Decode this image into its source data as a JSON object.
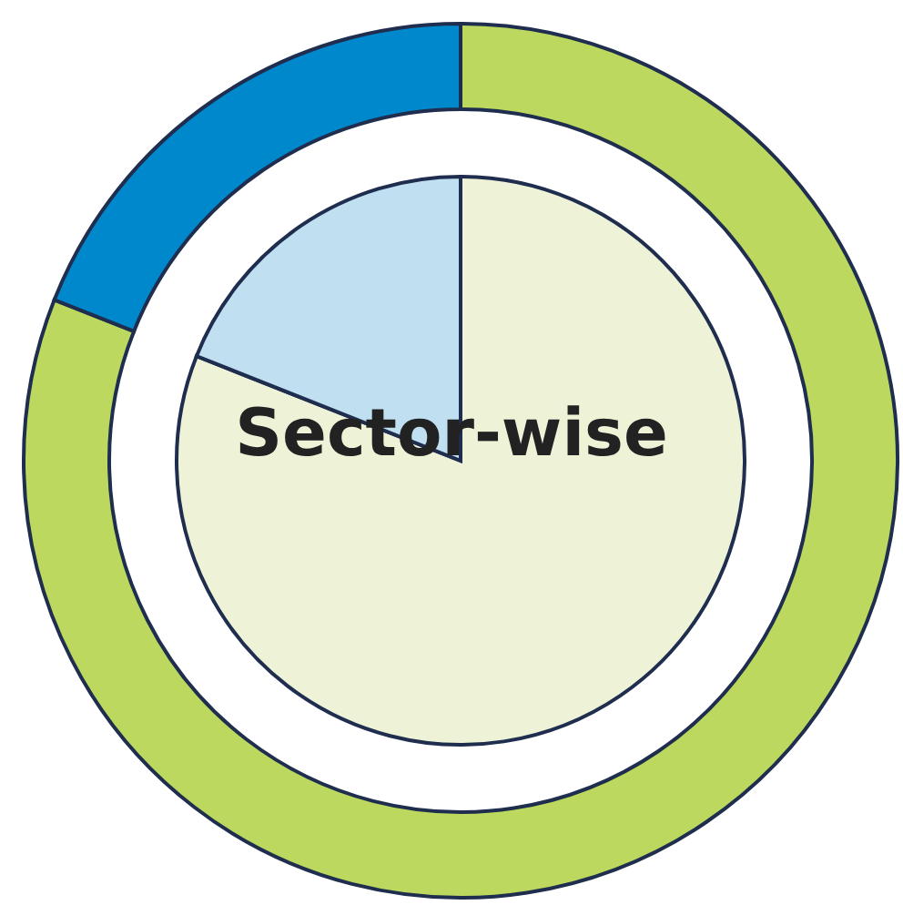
{
  "chart_data": [
    {
      "type": "donut",
      "categories": [
        null,
        null
      ],
      "values": [
        81,
        19
      ],
      "colors": [
        "#bcd85f",
        "#0088cc"
      ],
      "legend": false
    },
    {
      "type": "pie",
      "title": "Sector-wise",
      "categories": [
        null,
        null
      ],
      "values": [
        81,
        19
      ],
      "colors": [
        "#eef3d7",
        "#c0e0f2"
      ],
      "legend": false
    }
  ]
}
